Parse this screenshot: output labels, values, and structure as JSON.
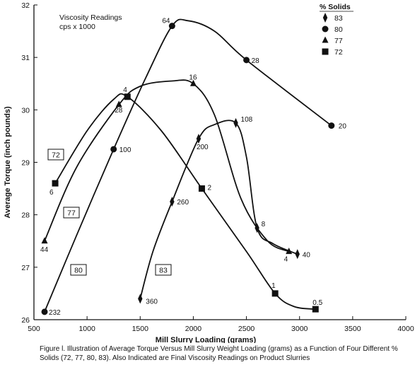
{
  "chart_data": {
    "type": "line",
    "xlabel": "Mill Slurry Loading (grams)",
    "ylabel": "Average Torque (inch pounds)",
    "xlim": [
      500,
      4000
    ],
    "ylim": [
      26,
      32
    ],
    "x_ticks": [
      "500",
      "1000",
      "1500",
      "2000",
      "2500",
      "3000",
      "3500",
      "4000"
    ],
    "y_ticks": [
      "26",
      "27",
      "28",
      "29",
      "30",
      "31",
      "32"
    ],
    "annotation": [
      "Viscosity Readings",
      "cps x 1000"
    ],
    "legend_title": "% Solids",
    "grid": false,
    "series": [
      {
        "name": "83",
        "marker": "diamond",
        "x": [
          1500,
          1800,
          2050,
          2400,
          2600,
          2980
        ],
        "y": [
          26.4,
          28.25,
          29.45,
          29.75,
          27.75,
          27.25
        ],
        "labels": [
          "360",
          "260",
          "200",
          "108",
          "8",
          "40"
        ],
        "curve": [
          [
            1500,
            26.4
          ],
          [
            1620,
            27.3
          ],
          [
            1800,
            28.25
          ],
          [
            2050,
            29.45
          ],
          [
            2200,
            29.72
          ],
          [
            2400,
            29.75
          ],
          [
            2500,
            29.1
          ],
          [
            2600,
            27.75
          ],
          [
            2750,
            27.45
          ],
          [
            2980,
            27.25
          ]
        ]
      },
      {
        "name": "80",
        "marker": "circle",
        "x": [
          600,
          1250,
          1800,
          2500,
          3300
        ],
        "y": [
          26.15,
          29.25,
          31.6,
          30.95,
          29.7
        ],
        "labels": [
          "232",
          "100",
          "64",
          "28",
          "20"
        ],
        "curve": [
          [
            600,
            26.15
          ],
          [
            900,
            27.6
          ],
          [
            1250,
            29.25
          ],
          [
            1550,
            30.6
          ],
          [
            1800,
            31.6
          ],
          [
            1950,
            31.7
          ],
          [
            2200,
            31.5
          ],
          [
            2500,
            30.95
          ],
          [
            3300,
            29.7
          ]
        ]
      },
      {
        "name": "77",
        "marker": "triangle",
        "x": [
          600,
          1300,
          2000,
          2900
        ],
        "y": [
          27.5,
          30.1,
          30.5,
          27.3
        ],
        "labels": [
          "44",
          "28",
          "16",
          "4"
        ],
        "curve": [
          [
            600,
            27.5
          ],
          [
            900,
            28.9
          ],
          [
            1300,
            30.1
          ],
          [
            1500,
            30.45
          ],
          [
            1800,
            30.55
          ],
          [
            2000,
            30.5
          ],
          [
            2200,
            29.9
          ],
          [
            2450,
            28.3
          ],
          [
            2700,
            27.5
          ],
          [
            2900,
            27.3
          ]
        ]
      },
      {
        "name": "72",
        "marker": "square",
        "x": [
          700,
          1380,
          2080,
          2770,
          3150
        ],
        "y": [
          28.6,
          30.25,
          28.5,
          26.5,
          26.2
        ],
        "labels": [
          "6",
          "4",
          "2",
          "1",
          "0.5"
        ],
        "curve": [
          [
            700,
            28.6
          ],
          [
            1000,
            29.6
          ],
          [
            1250,
            30.2
          ],
          [
            1380,
            30.25
          ],
          [
            1700,
            29.6
          ],
          [
            2080,
            28.5
          ],
          [
            2500,
            27.3
          ],
          [
            2770,
            26.5
          ],
          [
            2950,
            26.25
          ],
          [
            3150,
            26.2
          ]
        ]
      }
    ],
    "boxes": [
      "72",
      "77",
      "80",
      "83"
    ]
  },
  "caption": "Figure l. Illustration of Average Torque Versus Mill Slurry Weight Loading (grams) as a Function of Four Different % Solids (72, 77, 80, 83). Also Indicated are Final Viscosity Readings on Product Slurries"
}
